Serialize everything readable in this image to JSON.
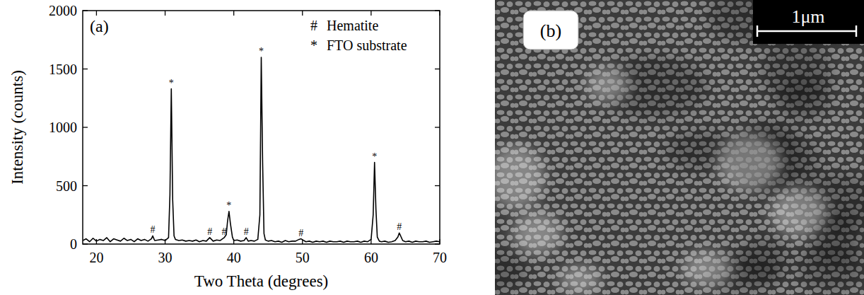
{
  "chart_data": {
    "type": "line",
    "panel_label": "(a)",
    "x_label": "Two Theta (degrees)",
    "y_label": "Intensity (counts)",
    "x": [
      18.0,
      18.5,
      19.0,
      19.5,
      20.0,
      20.5,
      21.0,
      21.5,
      22.0,
      22.5,
      23.0,
      23.5,
      24.0,
      24.5,
      25.0,
      25.5,
      26.0,
      26.5,
      27.0,
      27.5,
      28.0,
      28.2,
      28.4,
      28.5,
      29.0,
      29.5,
      30.0,
      30.5,
      30.7,
      30.9,
      31.1,
      31.3,
      31.5,
      32.0,
      32.5,
      33.0,
      33.5,
      34.0,
      34.5,
      35.0,
      35.5,
      36.0,
      36.5,
      37.0,
      37.5,
      38.0,
      38.6,
      38.9,
      39.1,
      39.3,
      39.5,
      39.8,
      40.0,
      40.5,
      41.0,
      41.5,
      41.8,
      42.1,
      42.5,
      43.0,
      43.5,
      43.8,
      44.0,
      44.2,
      44.4,
      44.6,
      45.0,
      45.5,
      46.0,
      46.5,
      47.0,
      47.5,
      48.0,
      48.5,
      49.0,
      49.5,
      49.8,
      50.2,
      50.5,
      51.0,
      51.5,
      52.0,
      52.5,
      53.0,
      53.5,
      54.0,
      54.5,
      55.0,
      55.5,
      56.0,
      56.5,
      57.0,
      57.5,
      58.0,
      58.5,
      59.0,
      59.5,
      60.0,
      60.3,
      60.5,
      60.7,
      60.9,
      61.2,
      61.5,
      62.0,
      62.5,
      63.0,
      63.5,
      63.9,
      64.1,
      64.3,
      64.6,
      65.0,
      65.5,
      66.0,
      66.5,
      67.0,
      67.5,
      68.0,
      68.5,
      69.0,
      69.5,
      70.0
    ],
    "series": [
      {
        "color": "#000000",
        "values": [
          30,
          45,
          20,
          50,
          25,
          40,
          30,
          55,
          20,
          45,
          35,
          25,
          50,
          30,
          40,
          20,
          45,
          30,
          40,
          25,
          45,
          70,
          40,
          30,
          35,
          40,
          30,
          55,
          420,
          1330,
          380,
          70,
          40,
          30,
          35,
          25,
          30,
          25,
          35,
          20,
          30,
          25,
          55,
          25,
          35,
          30,
          55,
          80,
          200,
          280,
          180,
          60,
          30,
          35,
          25,
          30,
          55,
          25,
          30,
          25,
          40,
          250,
          1600,
          700,
          90,
          35,
          25,
          30,
          20,
          25,
          15,
          30,
          20,
          25,
          25,
          40,
          45,
          30,
          20,
          25,
          15,
          25,
          20,
          25,
          15,
          25,
          20,
          20,
          25,
          15,
          25,
          20,
          20,
          25,
          15,
          25,
          20,
          40,
          250,
          700,
          300,
          60,
          25,
          20,
          25,
          15,
          20,
          30,
          60,
          95,
          70,
          30,
          20,
          25,
          15,
          25,
          20,
          20,
          25,
          15,
          20,
          25,
          20
        ]
      }
    ],
    "xlim": [
      18,
      70
    ],
    "xticks": [
      20,
      30,
      40,
      50,
      60,
      70
    ],
    "ylim": [
      0,
      2000
    ],
    "yticks": [
      0,
      500,
      1000,
      1500,
      2000
    ],
    "grid": false,
    "legend": "upper right",
    "legend_items": [
      {
        "symbol": "#",
        "label": "Hematite"
      },
      {
        "symbol": "*",
        "label": "FTO substrate"
      }
    ],
    "annotations": [
      {
        "x": 28.2,
        "y": 70,
        "text": "#"
      },
      {
        "x": 30.9,
        "y": 1330,
        "text": "*"
      },
      {
        "x": 36.5,
        "y": 55,
        "text": "#"
      },
      {
        "x": 38.6,
        "y": 55,
        "text": "#"
      },
      {
        "x": 39.3,
        "y": 280,
        "text": "*"
      },
      {
        "x": 41.8,
        "y": 55,
        "text": "#"
      },
      {
        "x": 44.0,
        "y": 1600,
        "text": "*"
      },
      {
        "x": 49.8,
        "y": 45,
        "text": "#"
      },
      {
        "x": 60.5,
        "y": 700,
        "text": "*"
      },
      {
        "x": 64.1,
        "y": 95,
        "text": "#"
      }
    ]
  },
  "panel_b": {
    "panel_label": "(b)",
    "scale_bar_label": "1μm"
  }
}
